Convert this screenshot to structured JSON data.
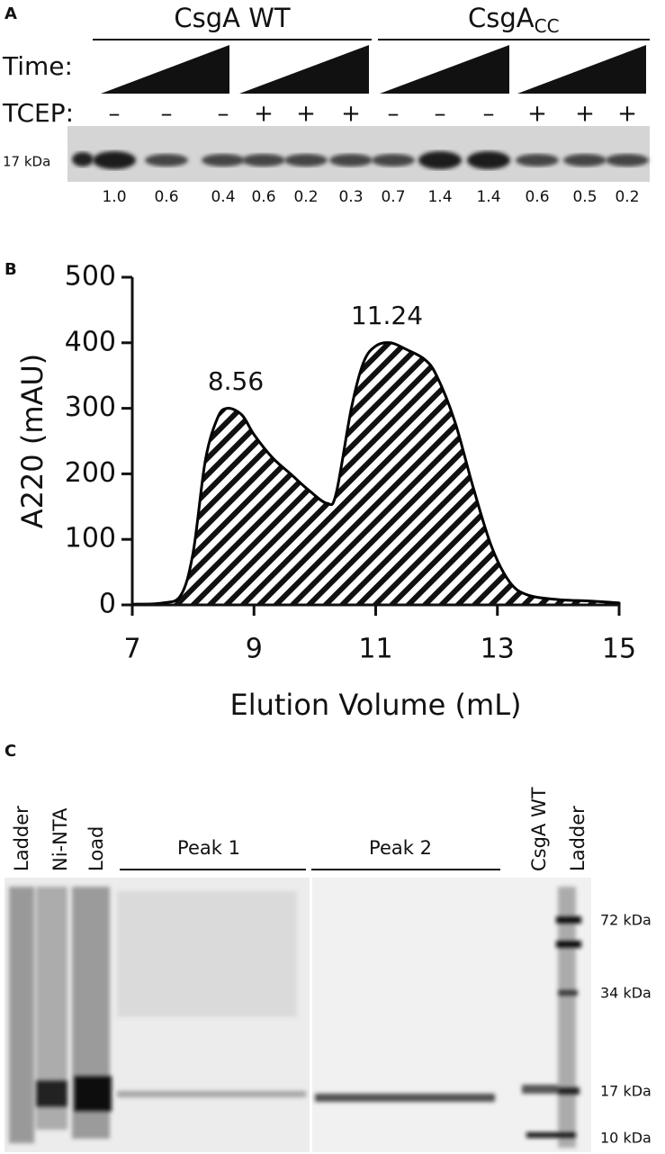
{
  "panel_a": {
    "letter": "A",
    "group_1": "CsgA WT",
    "group_2": "CsgA",
    "group_2_sub": "CC",
    "time_label": "Time:",
    "tcep_label": "TCEP:",
    "tcep": [
      "–",
      "–",
      "–",
      "+",
      "+",
      "+",
      "–",
      "–",
      "–",
      "+",
      "+",
      "+"
    ],
    "marker": "17 kDa",
    "quantities": [
      "1.0",
      "0.6",
      "0.4",
      "0.6",
      "0.2",
      "0.3",
      "0.7",
      "1.4",
      "1.4",
      "0.6",
      "0.5",
      "0.2"
    ]
  },
  "chart_data": {
    "type": "area",
    "letter": "B",
    "x_label": "Elution Volume (mL)",
    "y_label": "A220 (mAU)",
    "x": [
      7,
      7.5,
      7.8,
      8.0,
      8.2,
      8.4,
      8.56,
      8.8,
      9.0,
      9.3,
      9.6,
      9.9,
      10.2,
      10.35,
      10.6,
      10.8,
      11.0,
      11.24,
      11.5,
      11.8,
      12.0,
      12.3,
      12.6,
      12.9,
      13.2,
      13.5,
      14.0,
      14.5,
      15
    ],
    "values": [
      1,
      3,
      15,
      80,
      220,
      285,
      300,
      290,
      260,
      225,
      200,
      175,
      155,
      170,
      300,
      370,
      395,
      400,
      390,
      375,
      350,
      280,
      180,
      90,
      35,
      15,
      8,
      6,
      3
    ],
    "color": "#000000",
    "annotations": [
      "8.56",
      "11.24"
    ],
    "xlim": [
      7,
      15
    ],
    "xticks": [
      7,
      9,
      11,
      13,
      15
    ],
    "ylim": [
      0,
      500
    ],
    "yticks": [
      0,
      100,
      200,
      300,
      400,
      500
    ]
  },
  "panel_c": {
    "letter": "C",
    "lanes_left": [
      "Ladder",
      "Ni-NTA",
      "Load"
    ],
    "peak_1": "Peak 1",
    "peak_2": "Peak 2",
    "lanes_right": [
      "CsgA WT",
      "Ladder"
    ],
    "markers": [
      "72 kDa",
      "34 kDa",
      "17 kDa",
      "10 kDa"
    ]
  }
}
